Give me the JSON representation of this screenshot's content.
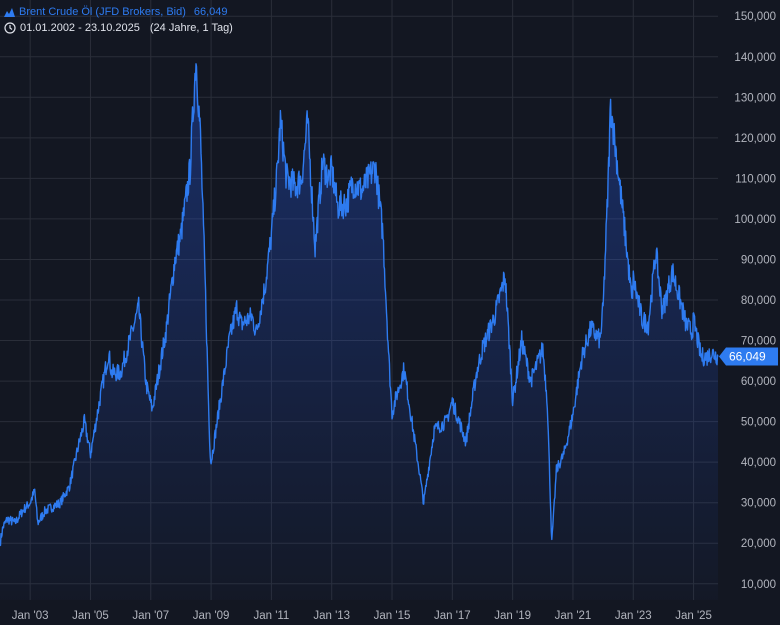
{
  "legend": {
    "title": "Brent Crude Öl (JFD Brokers, Bid)",
    "last_value": "66,049",
    "range": "01.01.2002 - 23.10.2025",
    "span": "(24 Jahre, 1 Tag)",
    "mountain_icon": "mountain-chart-icon",
    "clock_icon": "clock-icon"
  },
  "colors": {
    "background": "#131722",
    "line": "#2e7bf0",
    "grid": "#2a2e39",
    "badge": "#2e7bf0"
  },
  "chart_data": {
    "type": "area",
    "title": "Brent Crude Öl (JFD Brokers, Bid)",
    "last_value": 66.049,
    "last_value_label": "66,049",
    "x_ticks": [
      "Jan '03",
      "Jan '05",
      "Jan '07",
      "Jan '09",
      "Jan '11",
      "Jan '13",
      "Jan '15",
      "Jan '17",
      "Jan '19",
      "Jan '21",
      "Jan '23",
      "Jan '25"
    ],
    "x_tick_years": [
      2003,
      2005,
      2007,
      2009,
      2011,
      2013,
      2015,
      2017,
      2019,
      2021,
      2023,
      2025
    ],
    "y_ticks": [
      "10,000",
      "20,000",
      "30,000",
      "40,000",
      "50,000",
      "60,000",
      "70,000",
      "80,000",
      "90,000",
      "100,000",
      "110,000",
      "120,000",
      "130,000",
      "140,000",
      "150,000"
    ],
    "y_tick_values": [
      10,
      20,
      30,
      40,
      50,
      60,
      70,
      80,
      90,
      100,
      110,
      120,
      130,
      140,
      150
    ],
    "xlim": [
      2002.0,
      2025.81
    ],
    "ylim": [
      6,
      154
    ],
    "grid": true,
    "y_axis_position": "right",
    "series": [
      {
        "x": [
          2002.0,
          2002.1,
          2002.25,
          2002.5,
          2002.75,
          2003.0,
          2003.15,
          2003.25,
          2003.5,
          2003.75,
          2004.0,
          2004.3,
          2004.6,
          2004.8,
          2005.0,
          2005.3,
          2005.6,
          2005.7,
          2006.0,
          2006.3,
          2006.6,
          2006.85,
          2007.05,
          2007.5,
          2007.8,
          2008.0,
          2008.3,
          2008.5,
          2008.65,
          2008.8,
          2008.95,
          2009.0,
          2009.3,
          2009.6,
          2009.85,
          2010.0,
          2010.35,
          2010.5,
          2010.8,
          2011.0,
          2011.2,
          2011.3,
          2011.5,
          2011.8,
          2012.0,
          2012.2,
          2012.45,
          2012.7,
          2012.9,
          2013.0,
          2013.2,
          2013.5,
          2013.7,
          2014.0,
          2014.45,
          2014.7,
          2014.9,
          2015.0,
          2015.1,
          2015.4,
          2015.7,
          2015.9,
          2016.05,
          2016.4,
          2016.8,
          2017.0,
          2017.45,
          2017.8,
          2018.0,
          2018.4,
          2018.75,
          2018.95,
          2019.0,
          2019.3,
          2019.6,
          2019.9,
          2020.0,
          2020.15,
          2020.3,
          2020.45,
          2020.7,
          2020.95,
          2021.0,
          2021.3,
          2021.6,
          2021.9,
          2022.0,
          2022.15,
          2022.25,
          2022.45,
          2022.75,
          2022.95,
          2023.0,
          2023.3,
          2023.5,
          2023.75,
          2023.95,
          2024.0,
          2024.3,
          2024.55,
          2024.75,
          2024.95,
          2025.0,
          2025.25,
          2025.45,
          2025.6,
          2025.81
        ],
        "y": [
          20,
          24,
          26,
          25,
          28,
          30,
          33,
          25,
          28,
          29,
          30,
          34,
          44,
          50,
          42,
          55,
          67,
          62,
          62,
          70,
          78,
          59,
          53,
          72,
          90,
          96,
          112,
          140,
          120,
          85,
          45,
          40,
          55,
          70,
          78,
          74,
          76,
          72,
          84,
          96,
          112,
          124,
          110,
          108,
          110,
          124,
          93,
          114,
          110,
          112,
          103,
          104,
          109,
          107,
          113,
          96,
          65,
          52,
          55,
          63,
          48,
          38,
          30,
          48,
          50,
          55,
          45,
          62,
          68,
          76,
          86,
          62,
          55,
          70,
          60,
          66,
          68,
          55,
          20,
          38,
          42,
          50,
          52,
          66,
          73,
          70,
          78,
          105,
          128,
          115,
          95,
          80,
          85,
          75,
          74,
          92,
          78,
          78,
          87,
          80,
          74,
          72,
          75,
          66,
          66,
          67,
          66.049
        ]
      }
    ]
  }
}
